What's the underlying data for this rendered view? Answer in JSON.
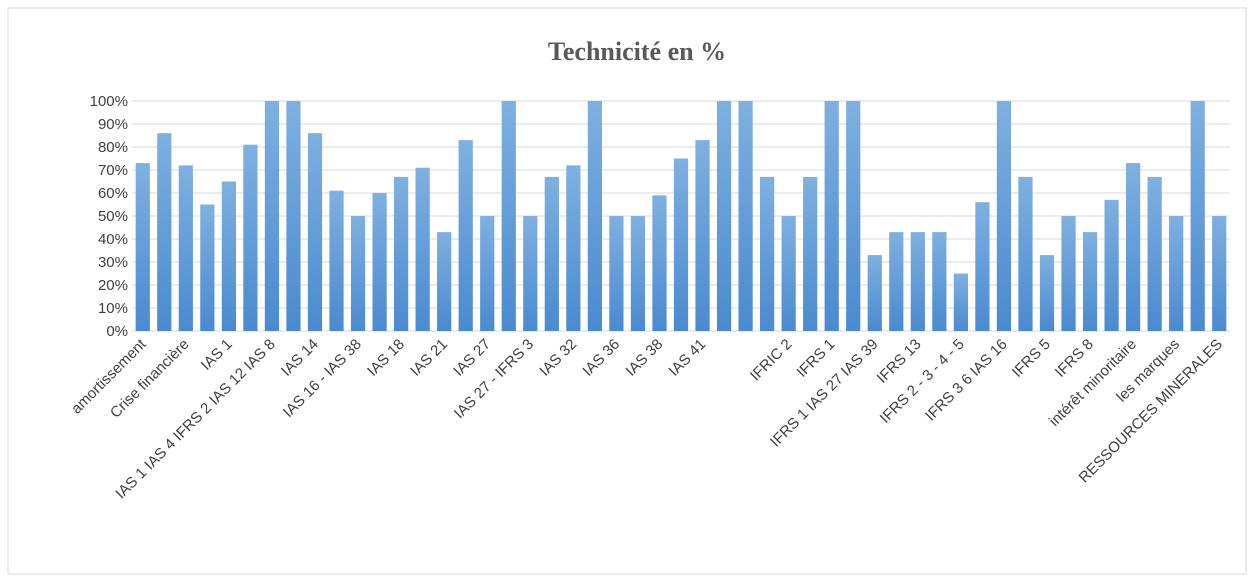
{
  "chart_data": {
    "type": "bar",
    "title": "Technicité en %",
    "categories": [
      "amortissement",
      null,
      "Crise financière",
      null,
      "IAS 1",
      null,
      "IAS 1 IAS 4 IFRS 2 IAS 12 IAS 8",
      null,
      "IAS 14",
      null,
      "IAS 16 - IAS 38",
      null,
      "IAS 18",
      null,
      "IAS 21",
      null,
      "IAS 27",
      null,
      "IAS 27 - IFRS 3",
      null,
      "IAS 32",
      null,
      "IAS 36",
      null,
      "IAS 38",
      null,
      "IAS 41",
      null,
      null,
      null,
      "IFRIC 2",
      null,
      "IFRS 1",
      null,
      "IFRS 1 IAS 27 IAS 39",
      null,
      "IFRS 13",
      null,
      "IFRS 2  - 3 - 4 - 5",
      null,
      "IFRS 3 6 IAS 16",
      null,
      "IFRS 5",
      null,
      "IFRS 8",
      null,
      "intérêt minoritaire",
      null,
      "les marques",
      null,
      "RESSOURCES MINERALES"
    ],
    "values": [
      73,
      86,
      72,
      55,
      65,
      81,
      100,
      100,
      86,
      61,
      50,
      60,
      67,
      71,
      43,
      83,
      50,
      100,
      50,
      67,
      72,
      100,
      50,
      50,
      59,
      75,
      83,
      100,
      100,
      67,
      50,
      67,
      100,
      100,
      33,
      43,
      43,
      43,
      25,
      56,
      100,
      67,
      33,
      50,
      43,
      57,
      73,
      67,
      50,
      100,
      50
    ],
    "color": "#5b9bd5",
    "ylim": [
      0,
      100
    ],
    "yticks": [
      {
        "value": 0,
        "label": "0%"
      },
      {
        "value": 10,
        "label": "10%"
      },
      {
        "value": 20,
        "label": "20%"
      },
      {
        "value": 30,
        "label": "30%"
      },
      {
        "value": 40,
        "label": "40%"
      },
      {
        "value": 50,
        "label": "50%"
      },
      {
        "value": 60,
        "label": "60%"
      },
      {
        "value": 70,
        "label": "70%"
      },
      {
        "value": 80,
        "label": "80%"
      },
      {
        "value": 90,
        "label": "90%"
      },
      {
        "value": 100,
        "label": "100%"
      }
    ],
    "grid": true
  }
}
